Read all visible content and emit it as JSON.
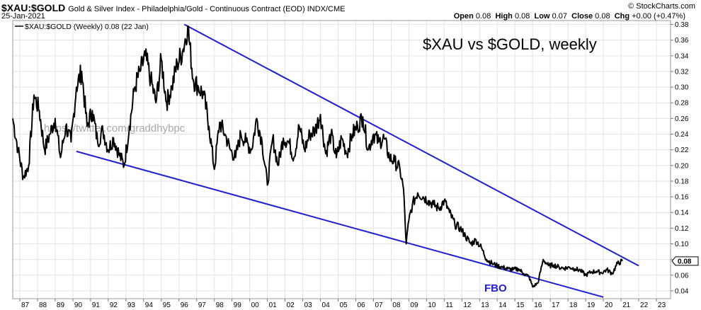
{
  "header": {
    "symbol": "$XAU:$GOLD",
    "description": "Gold & Silver Index - Philadelphia/Gold - Continuous Contract (EOD)  INDX/CME",
    "copyright": "© StockCharts.com",
    "date": "25-Jan-2021",
    "open_label": "Open",
    "open": "0.08",
    "high_label": "High",
    "high": "0.08",
    "low_label": "Low",
    "low": "0.07",
    "close_label": "Close",
    "close": "0.08",
    "chg_label": "Chg",
    "chg": "+0.00 (+0.47%)"
  },
  "chart_data": {
    "type": "line",
    "title": "$XAU vs $GOLD, weekly",
    "legend": "$XAU:$GOLD (Weekly) 0.08 (22 Jan)",
    "watermark": "https://twitter.com/graddhybpc",
    "annotation": "FBO",
    "current_value_label": "0.08",
    "colors": {
      "line": "#000000",
      "trendline": "#1f1fd6",
      "grid": "#e3e3e3",
      "annotation": "#1f1fd6"
    },
    "ylim": [
      0.03,
      0.385
    ],
    "xlim": [
      1986.6,
      2023.8
    ],
    "y_ticks": [
      0.04,
      0.06,
      0.08,
      0.1,
      0.12,
      0.14,
      0.16,
      0.18,
      0.2,
      0.22,
      0.24,
      0.26,
      0.28,
      0.3,
      0.32,
      0.34,
      0.36,
      0.38
    ],
    "y_tick_labels": [
      "0.04",
      "0.06",
      "0.08",
      "0.10",
      "0.12",
      "0.14",
      "0.16",
      "0.18",
      "0.20",
      "0.22",
      "0.24",
      "0.26",
      "0.28",
      "0.30",
      "0.32",
      "0.34",
      "0.36",
      "0.38"
    ],
    "x_ticks": [
      1987,
      1988,
      1989,
      1990,
      1991,
      1992,
      1993,
      1994,
      1995,
      1996,
      1997,
      1998,
      1999,
      2000,
      2001,
      2002,
      2003,
      2004,
      2005,
      2006,
      2007,
      2008,
      2009,
      2010,
      2011,
      2012,
      2013,
      2014,
      2015,
      2016,
      2017,
      2018,
      2019,
      2020,
      2021,
      2022,
      2023
    ],
    "x_tick_labels": [
      "87",
      "88",
      "89",
      "90",
      "91",
      "92",
      "93",
      "94",
      "95",
      "96",
      "97",
      "98",
      "99",
      "00",
      "01",
      "02",
      "03",
      "04",
      "05",
      "06",
      "07",
      "08",
      "09",
      "10",
      "11",
      "12",
      "13",
      "14",
      "15",
      "16",
      "17",
      "18",
      "19",
      "20",
      "21",
      "22",
      "23"
    ],
    "series": [
      {
        "x": [
          1986.6,
          1986.9,
          1987.2,
          1987.5,
          1987.8,
          1988.1,
          1988.4,
          1988.7,
          1989.0,
          1989.3,
          1989.6,
          1989.9,
          1990.2,
          1990.5,
          1990.8,
          1991.1,
          1991.4,
          1991.7,
          1992.0,
          1992.3,
          1992.6,
          1992.9,
          1993.2,
          1993.5,
          1993.8,
          1994.1,
          1994.4,
          1994.7,
          1995.0,
          1995.3,
          1995.6,
          1995.9,
          1996.2,
          1996.5,
          1996.8,
          1997.1,
          1997.4,
          1997.7,
          1998.0,
          1998.3,
          1998.6,
          1998.9,
          1999.2,
          1999.5,
          1999.8,
          2000.1,
          2000.4,
          2000.7,
          2001.0,
          2001.3,
          2001.6,
          2001.9,
          2002.2,
          2002.5,
          2002.8,
          2003.1,
          2003.4,
          2003.7,
          2004.0,
          2004.3,
          2004.6,
          2004.9,
          2005.2,
          2005.5,
          2005.8,
          2006.1,
          2006.4,
          2006.7,
          2007.0,
          2007.3,
          2007.6,
          2007.9,
          2008.2,
          2008.5,
          2008.7,
          2008.85,
          2009.0,
          2009.2,
          2009.5,
          2009.8,
          2010.1,
          2010.4,
          2010.7,
          2011.0,
          2011.3,
          2011.6,
          2011.9,
          2012.2,
          2012.5,
          2012.8,
          2013.1,
          2013.4,
          2013.7,
          2014.0,
          2014.3,
          2014.6,
          2014.9,
          2015.2,
          2015.5,
          2015.8,
          2016.0,
          2016.3,
          2016.6,
          2016.9,
          2017.2,
          2017.5,
          2017.8,
          2018.1,
          2018.4,
          2018.7,
          2019.0,
          2019.3,
          2019.6,
          2019.9,
          2020.2,
          2020.5,
          2020.8,
          2021.07
        ],
        "y": [
          0.26,
          0.22,
          0.185,
          0.2,
          0.29,
          0.27,
          0.22,
          0.24,
          0.26,
          0.21,
          0.25,
          0.23,
          0.3,
          0.32,
          0.25,
          0.27,
          0.23,
          0.245,
          0.22,
          0.235,
          0.215,
          0.2,
          0.25,
          0.3,
          0.32,
          0.34,
          0.31,
          0.28,
          0.335,
          0.28,
          0.3,
          0.33,
          0.345,
          0.378,
          0.31,
          0.3,
          0.29,
          0.25,
          0.195,
          0.255,
          0.24,
          0.22,
          0.21,
          0.24,
          0.23,
          0.22,
          0.26,
          0.23,
          0.175,
          0.235,
          0.2,
          0.235,
          0.23,
          0.21,
          0.25,
          0.22,
          0.24,
          0.245,
          0.265,
          0.215,
          0.24,
          0.21,
          0.235,
          0.215,
          0.24,
          0.25,
          0.262,
          0.22,
          0.24,
          0.23,
          0.235,
          0.21,
          0.205,
          0.195,
          0.17,
          0.1,
          0.13,
          0.15,
          0.165,
          0.16,
          0.155,
          0.15,
          0.145,
          0.155,
          0.14,
          0.125,
          0.12,
          0.11,
          0.1,
          0.105,
          0.095,
          0.08,
          0.075,
          0.072,
          0.07,
          0.068,
          0.067,
          0.068,
          0.062,
          0.058,
          0.045,
          0.05,
          0.08,
          0.072,
          0.073,
          0.07,
          0.069,
          0.07,
          0.068,
          0.066,
          0.06,
          0.064,
          0.065,
          0.063,
          0.067,
          0.062,
          0.075,
          0.078
        ]
      }
    ],
    "trendlines": [
      {
        "x": [
          1996.3,
          2022.0
        ],
        "y": [
          0.38,
          0.072
        ]
      },
      {
        "x": [
          1990.2,
          2020.0
        ],
        "y": [
          0.218,
          0.032
        ]
      }
    ]
  }
}
